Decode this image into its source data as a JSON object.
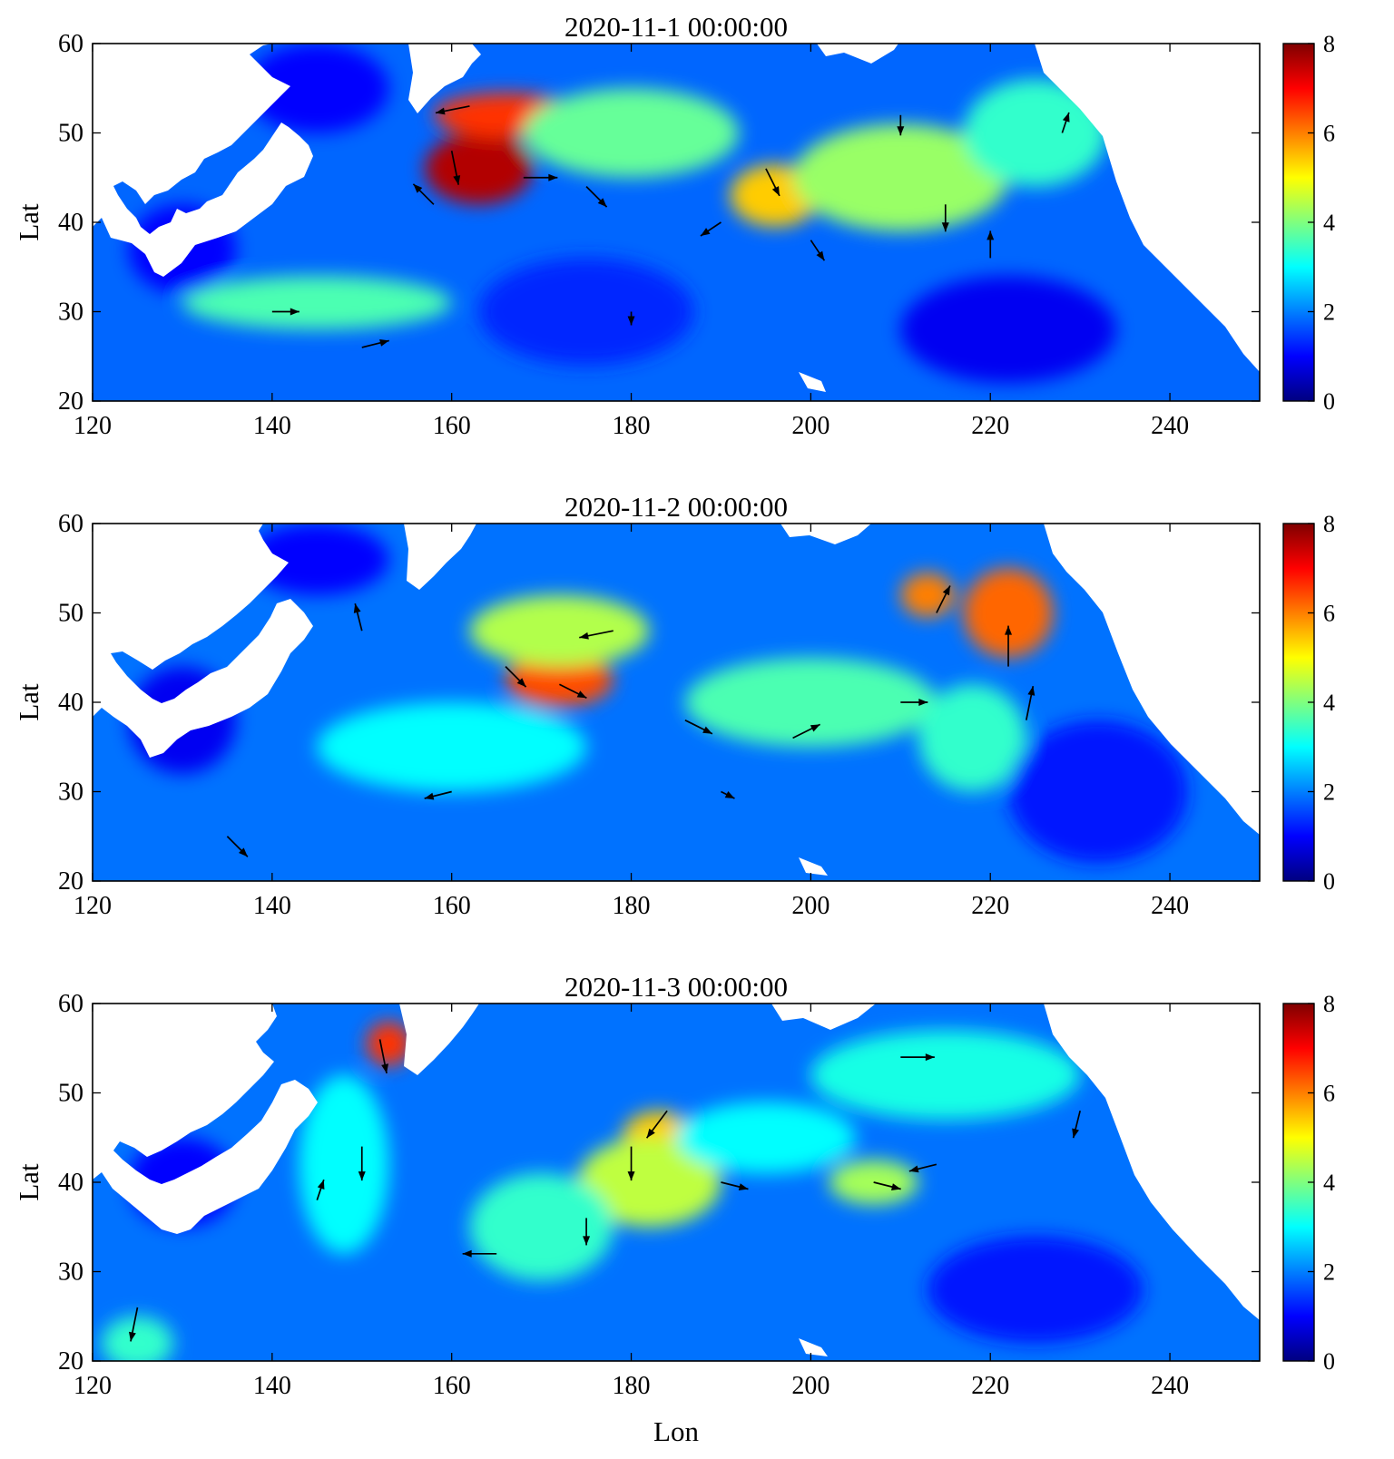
{
  "figure": {
    "xlabel": "Lon",
    "ylabel": "Lat"
  },
  "colormap": {
    "name": "jet",
    "stops": [
      "#00007f",
      "#0000ff",
      "#007fff",
      "#00ffff",
      "#7fff7f",
      "#ffff00",
      "#ff7f00",
      "#ff0000",
      "#7f0000"
    ]
  },
  "chart_data": [
    {
      "type": "heatmap",
      "title": "2020-11-1 00:00:00",
      "xlabel": "",
      "ylabel": "Lat",
      "xlim": [
        120,
        250
      ],
      "ylim": [
        20,
        60
      ],
      "xticks": [
        "120",
        "140",
        "160",
        "180",
        "200",
        "220",
        "240"
      ],
      "yticks": [
        "20",
        "30",
        "40",
        "50",
        "60"
      ],
      "colorbar": {
        "range": [
          0,
          8
        ],
        "ticks": [
          "0",
          "2",
          "4",
          "6",
          "8"
        ]
      },
      "background": 1.8,
      "hotspots": [
        {
          "lon": 163,
          "lat": 46,
          "value": 7.6,
          "rlon": 6,
          "rlat": 4
        },
        {
          "lon": 166,
          "lat": 52,
          "value": 6.6,
          "rlon": 8,
          "rlat": 2.5
        },
        {
          "lon": 196,
          "lat": 43,
          "value": 5.4,
          "rlon": 5,
          "rlat": 3.5
        },
        {
          "lon": 210,
          "lat": 45,
          "value": 4.2,
          "rlon": 12,
          "rlat": 6
        },
        {
          "lon": 180,
          "lat": 50,
          "value": 3.8,
          "rlon": 12,
          "rlat": 5
        },
        {
          "lon": 145,
          "lat": 31,
          "value": 3.6,
          "rlon": 15,
          "rlat": 3
        },
        {
          "lon": 225,
          "lat": 50,
          "value": 3.4,
          "rlon": 8,
          "rlat": 6
        },
        {
          "lon": 222,
          "lat": 28,
          "value": 0.9,
          "rlon": 12,
          "rlat": 6
        },
        {
          "lon": 130,
          "lat": 37,
          "value": 1.0,
          "rlon": 6,
          "rlat": 5
        },
        {
          "lon": 145,
          "lat": 55,
          "value": 1.0,
          "rlon": 8,
          "rlat": 5
        },
        {
          "lon": 175,
          "lat": 30,
          "value": 1.3,
          "rlon": 12,
          "rlat": 6
        }
      ],
      "vectors": [
        {
          "lon": 162,
          "lat": 53,
          "u": -5,
          "v": -1
        },
        {
          "lon": 160,
          "lat": 48,
          "u": 1,
          "v": -5
        },
        {
          "lon": 168,
          "lat": 45,
          "u": 5,
          "v": 0
        },
        {
          "lon": 158,
          "lat": 42,
          "u": -3,
          "v": 3
        },
        {
          "lon": 175,
          "lat": 44,
          "u": 3,
          "v": -3
        },
        {
          "lon": 195,
          "lat": 46,
          "u": 2,
          "v": -4
        },
        {
          "lon": 190,
          "lat": 40,
          "u": -3,
          "v": -2
        },
        {
          "lon": 200,
          "lat": 38,
          "u": 2,
          "v": -3
        },
        {
          "lon": 215,
          "lat": 42,
          "u": 0,
          "v": -4
        },
        {
          "lon": 220,
          "lat": 36,
          "u": 0,
          "v": 4
        },
        {
          "lon": 210,
          "lat": 52,
          "u": 0,
          "v": -3
        },
        {
          "lon": 140,
          "lat": 30,
          "u": 4,
          "v": 0
        },
        {
          "lon": 150,
          "lat": 26,
          "u": 4,
          "v": 1
        },
        {
          "lon": 180,
          "lat": 30,
          "u": 0,
          "v": -2
        },
        {
          "lon": 228,
          "lat": 50,
          "u": 1,
          "v": 3
        }
      ]
    },
    {
      "type": "heatmap",
      "title": "2020-11-2 00:00:00",
      "xlabel": "",
      "ylabel": "Lat",
      "xlim": [
        120,
        250
      ],
      "ylim": [
        20,
        60
      ],
      "xticks": [
        "120",
        "140",
        "160",
        "180",
        "200",
        "220",
        "240"
      ],
      "yticks": [
        "20",
        "30",
        "40",
        "50",
        "60"
      ],
      "colorbar": {
        "range": [
          0,
          8
        ],
        "ticks": [
          "0",
          "2",
          "4",
          "6",
          "8"
        ]
      },
      "background": 1.9,
      "hotspots": [
        {
          "lon": 172,
          "lat": 42.5,
          "value": 6.4,
          "rlon": 6,
          "rlat": 3
        },
        {
          "lon": 222,
          "lat": 50,
          "value": 6.2,
          "rlon": 5,
          "rlat": 5
        },
        {
          "lon": 213,
          "lat": 52,
          "value": 6.0,
          "rlon": 3,
          "rlat": 2.5
        },
        {
          "lon": 172,
          "lat": 48,
          "value": 4.4,
          "rlon": 10,
          "rlat": 4
        },
        {
          "lon": 200,
          "lat": 40,
          "value": 3.6,
          "rlon": 14,
          "rlat": 5
        },
        {
          "lon": 218,
          "lat": 36,
          "value": 3.4,
          "rlon": 6,
          "rlat": 6
        },
        {
          "lon": 160,
          "lat": 35,
          "value": 3.0,
          "rlon": 15,
          "rlat": 5
        },
        {
          "lon": 130,
          "lat": 38,
          "value": 0.9,
          "rlon": 6,
          "rlat": 6
        },
        {
          "lon": 145,
          "lat": 56,
          "value": 1.0,
          "rlon": 8,
          "rlat": 4
        },
        {
          "lon": 232,
          "lat": 30,
          "value": 1.2,
          "rlon": 10,
          "rlat": 8
        }
      ],
      "vectors": [
        {
          "lon": 166,
          "lat": 44,
          "u": 3,
          "v": -3
        },
        {
          "lon": 172,
          "lat": 42,
          "u": 4,
          "v": -2
        },
        {
          "lon": 178,
          "lat": 48,
          "u": -5,
          "v": -1
        },
        {
          "lon": 186,
          "lat": 38,
          "u": 4,
          "v": -2
        },
        {
          "lon": 198,
          "lat": 36,
          "u": 4,
          "v": 2
        },
        {
          "lon": 210,
          "lat": 40,
          "u": 4,
          "v": 0
        },
        {
          "lon": 222,
          "lat": 44,
          "u": 0,
          "v": 6
        },
        {
          "lon": 214,
          "lat": 50,
          "u": 2,
          "v": 4
        },
        {
          "lon": 224,
          "lat": 38,
          "u": 1,
          "v": 5
        },
        {
          "lon": 150,
          "lat": 48,
          "u": -1,
          "v": 4
        },
        {
          "lon": 160,
          "lat": 30,
          "u": -4,
          "v": -1
        },
        {
          "lon": 190,
          "lat": 30,
          "u": 2,
          "v": -1
        },
        {
          "lon": 135,
          "lat": 25,
          "u": 3,
          "v": -3
        }
      ]
    },
    {
      "type": "heatmap",
      "title": "2020-11-3 00:00:00",
      "xlabel": "Lon",
      "ylabel": "Lat",
      "xlim": [
        120,
        250
      ],
      "ylim": [
        20,
        60
      ],
      "xticks": [
        "120",
        "140",
        "160",
        "180",
        "200",
        "220",
        "240"
      ],
      "yticks": [
        "20",
        "30",
        "40",
        "50",
        "60"
      ],
      "colorbar": {
        "range": [
          0,
          8
        ],
        "ticks": [
          "0",
          "2",
          "4",
          "6",
          "8"
        ]
      },
      "background": 1.9,
      "hotspots": [
        {
          "lon": 153,
          "lat": 55.5,
          "value": 6.6,
          "rlon": 2.5,
          "rlat": 2.5
        },
        {
          "lon": 183,
          "lat": 45,
          "value": 5.4,
          "rlon": 4,
          "rlat": 3
        },
        {
          "lon": 182,
          "lat": 40,
          "value": 4.5,
          "rlon": 8,
          "rlat": 5
        },
        {
          "lon": 207,
          "lat": 40,
          "value": 4.3,
          "rlon": 5,
          "rlat": 2.5
        },
        {
          "lon": 215,
          "lat": 52,
          "value": 3.2,
          "rlon": 15,
          "rlat": 5
        },
        {
          "lon": 195,
          "lat": 45,
          "value": 3.0,
          "rlon": 10,
          "rlat": 4
        },
        {
          "lon": 170,
          "lat": 35,
          "value": 3.4,
          "rlon": 8,
          "rlat": 6
        },
        {
          "lon": 125,
          "lat": 22,
          "value": 3.4,
          "rlon": 4,
          "rlat": 3
        },
        {
          "lon": 148,
          "lat": 42,
          "value": 3.0,
          "rlon": 5,
          "rlat": 10
        },
        {
          "lon": 130,
          "lat": 40,
          "value": 1.0,
          "rlon": 6,
          "rlat": 5
        },
        {
          "lon": 225,
          "lat": 28,
          "value": 1.2,
          "rlon": 12,
          "rlat": 6
        }
      ],
      "vectors": [
        {
          "lon": 152,
          "lat": 56,
          "u": 1,
          "v": -5
        },
        {
          "lon": 184,
          "lat": 48,
          "u": -3,
          "v": -4
        },
        {
          "lon": 180,
          "lat": 44,
          "u": 0,
          "v": -5
        },
        {
          "lon": 190,
          "lat": 40,
          "u": 4,
          "v": -1
        },
        {
          "lon": 207,
          "lat": 40,
          "u": 4,
          "v": -1
        },
        {
          "lon": 214,
          "lat": 42,
          "u": -4,
          "v": -1
        },
        {
          "lon": 210,
          "lat": 54,
          "u": 5,
          "v": 0
        },
        {
          "lon": 230,
          "lat": 48,
          "u": -1,
          "v": -4
        },
        {
          "lon": 165,
          "lat": 32,
          "u": -5,
          "v": 0
        },
        {
          "lon": 150,
          "lat": 44,
          "u": 0,
          "v": -5
        },
        {
          "lon": 145,
          "lat": 38,
          "u": 1,
          "v": 3
        },
        {
          "lon": 125,
          "lat": 26,
          "u": -1,
          "v": -5
        },
        {
          "lon": 175,
          "lat": 36,
          "u": 0,
          "v": -4
        }
      ]
    }
  ]
}
